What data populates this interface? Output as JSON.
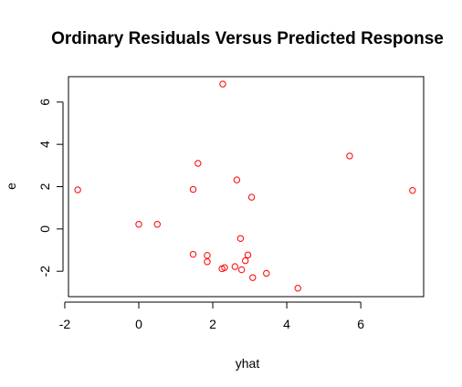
{
  "chart_data": {
    "type": "scatter",
    "title": "Ordinary Residuals Versus Predicted Response",
    "xlabel": "yhat",
    "ylabel": "e",
    "xlim": [
      -1.9,
      7.7
    ],
    "ylim": [
      -3.2,
      7.2
    ],
    "xticks": [
      -2,
      0,
      2,
      4,
      6
    ],
    "xtick_labels": [
      "-2",
      "0",
      "2",
      "4",
      "6"
    ],
    "yticks": [
      -2,
      0,
      2,
      4,
      6
    ],
    "ytick_labels": [
      "-2",
      "0",
      "2",
      "4",
      "6"
    ],
    "grid": false,
    "legend": "none",
    "point_color": "#ff0000",
    "axis_color": "#000000",
    "points": [
      {
        "x": 2.27,
        "y": 6.85
      },
      {
        "x": 5.7,
        "y": 3.45
      },
      {
        "x": 1.6,
        "y": 3.1
      },
      {
        "x": 2.65,
        "y": 2.32
      },
      {
        "x": -1.65,
        "y": 1.85
      },
      {
        "x": 1.47,
        "y": 1.87
      },
      {
        "x": 7.4,
        "y": 1.82
      },
      {
        "x": 3.05,
        "y": 1.5
      },
      {
        "x": 0.0,
        "y": 0.22
      },
      {
        "x": 0.5,
        "y": 0.22
      },
      {
        "x": 2.75,
        "y": -0.45
      },
      {
        "x": 1.47,
        "y": -1.2
      },
      {
        "x": 1.85,
        "y": -1.25
      },
      {
        "x": 2.95,
        "y": -1.23
      },
      {
        "x": 1.85,
        "y": -1.55
      },
      {
        "x": 2.88,
        "y": -1.5
      },
      {
        "x": 2.6,
        "y": -1.78
      },
      {
        "x": 2.32,
        "y": -1.83
      },
      {
        "x": 2.25,
        "y": -1.88
      },
      {
        "x": 2.78,
        "y": -1.93
      },
      {
        "x": 3.45,
        "y": -2.1
      },
      {
        "x": 3.08,
        "y": -2.3
      },
      {
        "x": 4.3,
        "y": -2.8
      }
    ]
  }
}
